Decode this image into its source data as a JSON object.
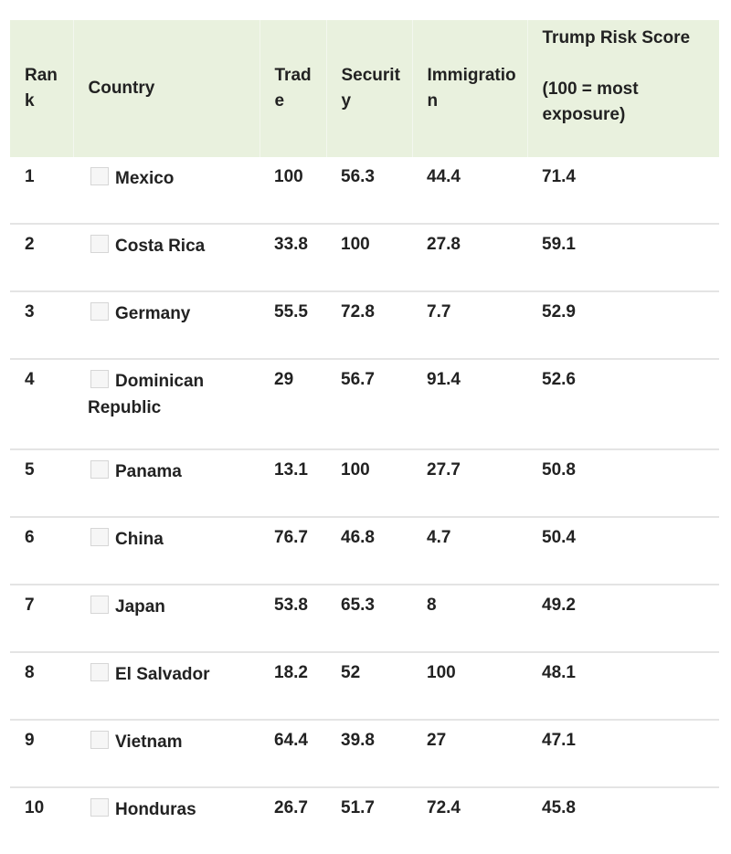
{
  "table": {
    "headers": {
      "rank": "Rank",
      "country": "Country",
      "trade": "Trade",
      "security": "Security",
      "immigration": "Immigration",
      "score_line1": "Trump Risk Score",
      "score_line2": "(100 = most exposure)"
    },
    "rows": [
      {
        "rank": "1",
        "country": "Mexico",
        "trade": "100",
        "security": "56.3",
        "immigration": "44.4",
        "score": "71.4"
      },
      {
        "rank": "2",
        "country": "Costa Rica",
        "trade": "33.8",
        "security": "100",
        "immigration": "27.8",
        "score": "59.1"
      },
      {
        "rank": "3",
        "country": "Germany",
        "trade": "55.5",
        "security": "72.8",
        "immigration": "7.7",
        "score": "52.9"
      },
      {
        "rank": "4",
        "country": "Dominican Republic",
        "trade": "29",
        "security": "56.7",
        "immigration": "91.4",
        "score": "52.6"
      },
      {
        "rank": "5",
        "country": "Panama",
        "trade": "13.1",
        "security": "100",
        "immigration": "27.7",
        "score": "50.8"
      },
      {
        "rank": "6",
        "country": "China",
        "trade": "76.7",
        "security": "46.8",
        "immigration": "4.7",
        "score": "50.4"
      },
      {
        "rank": "7",
        "country": "Japan",
        "trade": "53.8",
        "security": "65.3",
        "immigration": "8",
        "score": "49.2"
      },
      {
        "rank": "8",
        "country": "El Salvador",
        "trade": "18.2",
        "security": "52",
        "immigration": "100",
        "score": "48.1"
      },
      {
        "rank": "9",
        "country": "Vietnam",
        "trade": "64.4",
        "security": "39.8",
        "immigration": "27",
        "score": "47.1"
      },
      {
        "rank": "10",
        "country": "Honduras",
        "trade": "26.7",
        "security": "51.7",
        "immigration": "72.4",
        "score": "45.8"
      }
    ]
  }
}
